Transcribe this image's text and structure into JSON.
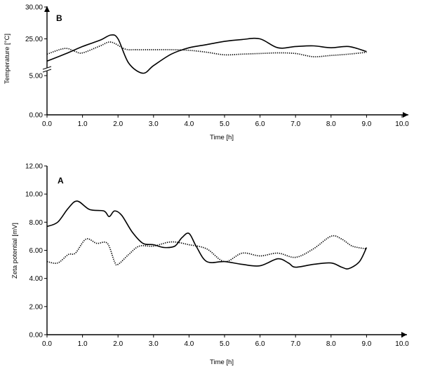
{
  "chart_data": [
    {
      "type": "line",
      "panel_label": "B",
      "xlabel": "Time [h]",
      "ylabel": "Temperature [°C]",
      "xlim": [
        0,
        10
      ],
      "x_ticks": [
        "0.0",
        "1.0",
        "2.0",
        "3.0",
        "4.0",
        "5.0",
        "6.0",
        "7.0",
        "8.0",
        "9.0",
        "10.0"
      ],
      "y_ticks": [
        "0.00",
        "5.00",
        "25.00",
        "30.00"
      ],
      "axis_break": "between 5.00 and 25.00",
      "grid": false,
      "series": [
        {
          "style": "solid",
          "x": [
            0.0,
            0.5,
            1.0,
            1.5,
            1.8,
            2.0,
            2.3,
            2.7,
            3.0,
            3.5,
            4.0,
            4.5,
            5.0,
            5.5,
            6.0,
            6.5,
            7.0,
            7.5,
            8.0,
            8.5,
            9.0
          ],
          "y": [
            21.5,
            22.6,
            23.8,
            24.8,
            25.6,
            25.0,
            21.2,
            19.6,
            20.8,
            22.6,
            23.6,
            24.1,
            24.6,
            24.9,
            25.0,
            23.6,
            23.8,
            23.9,
            23.6,
            23.8,
            23.0
          ]
        },
        {
          "style": "dotted",
          "x": [
            0.0,
            0.5,
            0.8,
            1.0,
            1.5,
            1.8,
            2.2,
            2.5,
            3.0,
            3.5,
            4.0,
            4.5,
            5.0,
            5.5,
            6.0,
            6.5,
            7.0,
            7.5,
            8.0,
            8.5,
            9.0
          ],
          "y": [
            22.6,
            23.5,
            23.0,
            22.8,
            23.9,
            24.5,
            23.4,
            23.3,
            23.3,
            23.3,
            23.2,
            22.9,
            22.5,
            22.6,
            22.7,
            22.8,
            22.7,
            22.2,
            22.4,
            22.6,
            22.9
          ]
        }
      ]
    },
    {
      "type": "line",
      "panel_label": "A",
      "xlabel": "Time [h]",
      "ylabel": "Zeta potential [mV]",
      "xlim": [
        0,
        10
      ],
      "ylim": [
        0,
        12
      ],
      "x_ticks": [
        "0.0",
        "1.0",
        "2.0",
        "3.0",
        "4.0",
        "5.0",
        "6.0",
        "7.0",
        "8.0",
        "9.0",
        "10.0"
      ],
      "y_ticks": [
        "0.00",
        "2.00",
        "4.00",
        "6.00",
        "8.00",
        "10.00",
        "12.00"
      ],
      "grid": false,
      "series": [
        {
          "style": "solid",
          "x": [
            0.0,
            0.3,
            0.6,
            0.85,
            1.2,
            1.6,
            1.75,
            1.9,
            2.1,
            2.4,
            2.7,
            3.0,
            3.3,
            3.6,
            3.8,
            4.0,
            4.2,
            4.5,
            5.0,
            5.5,
            6.0,
            6.5,
            6.8,
            7.0,
            7.5,
            8.0,
            8.3,
            8.5,
            8.8,
            9.0
          ],
          "y": [
            7.7,
            8.0,
            9.0,
            9.5,
            8.9,
            8.8,
            8.4,
            8.8,
            8.5,
            7.3,
            6.5,
            6.4,
            6.2,
            6.3,
            6.9,
            7.2,
            6.3,
            5.2,
            5.2,
            5.0,
            4.9,
            5.4,
            5.1,
            4.8,
            5.0,
            5.1,
            4.8,
            4.7,
            5.2,
            6.2
          ]
        },
        {
          "style": "dotted",
          "x": [
            0.0,
            0.3,
            0.6,
            0.8,
            1.1,
            1.4,
            1.7,
            1.9,
            2.0,
            2.3,
            2.6,
            3.0,
            3.5,
            4.0,
            4.5,
            5.0,
            5.5,
            6.0,
            6.5,
            7.0,
            7.5,
            8.0,
            8.3,
            8.6,
            9.0
          ],
          "y": [
            5.2,
            5.1,
            5.7,
            5.8,
            6.8,
            6.5,
            6.5,
            5.2,
            5.0,
            5.7,
            6.3,
            6.3,
            6.6,
            6.4,
            6.1,
            5.2,
            5.8,
            5.6,
            5.8,
            5.5,
            6.1,
            7.0,
            6.8,
            6.3,
            6.1
          ]
        }
      ]
    }
  ]
}
